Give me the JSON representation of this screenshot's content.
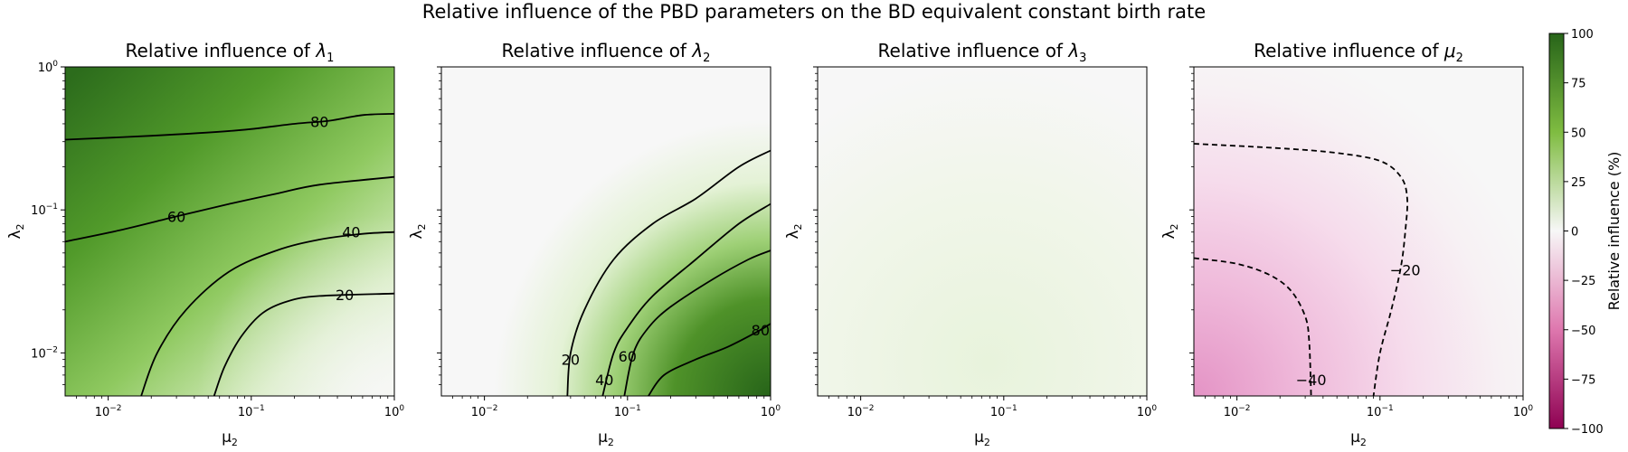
{
  "chart_data": {
    "type": "heatmap",
    "suptitle": "Relative influence of the PBD parameters on the BD equivalent constant birth rate",
    "x_scale": "log",
    "y_scale": "log",
    "xlim": [
      0.005,
      1
    ],
    "ylim": [
      0.005,
      1
    ],
    "x_ticks": [
      {
        "value": 0.01,
        "base": "10",
        "exp": "−2"
      },
      {
        "value": 0.1,
        "base": "10",
        "exp": "−1"
      },
      {
        "value": 1,
        "base": "10",
        "exp": "0"
      }
    ],
    "y_ticks": [
      {
        "value": 0.01,
        "base": "10",
        "exp": "−2"
      },
      {
        "value": 0.1,
        "base": "10",
        "exp": "−1"
      },
      {
        "value": 1,
        "base": "10",
        "exp": "0"
      }
    ],
    "colorbar": {
      "label": "Relative influence (%)",
      "range": [
        -100,
        100
      ],
      "ticks": [
        "100",
        "75",
        "50",
        "25",
        "0",
        "−25",
        "−50",
        "−75",
        "−100"
      ],
      "tick_values": [
        100,
        75,
        50,
        25,
        0,
        -25,
        -50,
        -75,
        -100
      ],
      "colormap": "PiYG",
      "colors": {
        "neg_end": "#8e0152",
        "neg_mid": "#de77ae",
        "neutral": "#f7f7f7",
        "pos_mid": "#7fbc41",
        "pos_end": "#276419"
      }
    },
    "panels": [
      {
        "title_prefix": "Relative influence of ",
        "title_sym": "λ",
        "title_sub": "1",
        "xlabel": {
          "sym": "μ",
          "sub": "2"
        },
        "ylabel": {
          "sym": "λ",
          "sub": "2"
        },
        "contours": [
          {
            "level": 80,
            "label": "80",
            "style": "solid",
            "points": [
              [
                0.005,
                0.31
              ],
              [
                0.02,
                0.33
              ],
              [
                0.08,
                0.36
              ],
              [
                0.2,
                0.4
              ],
              [
                0.35,
                0.42
              ],
              [
                0.6,
                0.46
              ],
              [
                1,
                0.47
              ]
            ],
            "label_at": [
              0.3,
              0.415
            ]
          },
          {
            "level": 60,
            "label": "60",
            "style": "solid",
            "points": [
              [
                0.005,
                0.06
              ],
              [
                0.012,
                0.072
              ],
              [
                0.03,
                0.09
              ],
              [
                0.07,
                0.11
              ],
              [
                0.15,
                0.13
              ],
              [
                0.3,
                0.15
              ],
              [
                1,
                0.17
              ]
            ],
            "label_at": [
              0.03,
              0.09
            ]
          },
          {
            "level": 40,
            "label": "40",
            "style": "solid",
            "points": [
              [
                0.017,
                0.005
              ],
              [
                0.022,
                0.01
              ],
              [
                0.035,
                0.02
              ],
              [
                0.07,
                0.037
              ],
              [
                0.15,
                0.052
              ],
              [
                0.3,
                0.062
              ],
              [
                0.6,
                0.068
              ],
              [
                1,
                0.07
              ]
            ],
            "label_at": [
              0.5,
              0.07
            ]
          },
          {
            "level": 20,
            "label": "20",
            "style": "solid",
            "points": [
              [
                0.055,
                0.005
              ],
              [
                0.065,
                0.008
              ],
              [
                0.085,
                0.013
              ],
              [
                0.12,
                0.019
              ],
              [
                0.18,
                0.023
              ],
              [
                0.3,
                0.025
              ],
              [
                1,
                0.026
              ]
            ],
            "label_at": [
              0.45,
              0.0255
            ]
          }
        ]
      },
      {
        "title_prefix": "Relative influence of ",
        "title_sym": "λ",
        "title_sub": "2",
        "xlabel": {
          "sym": "μ",
          "sub": "2"
        },
        "ylabel": {
          "sym": "λ",
          "sub": "2"
        },
        "contours": [
          {
            "level": 20,
            "label": "20",
            "style": "solid",
            "points": [
              [
                0.038,
                0.005
              ],
              [
                0.04,
                0.01
              ],
              [
                0.05,
                0.02
              ],
              [
                0.08,
                0.045
              ],
              [
                0.15,
                0.08
              ],
              [
                0.3,
                0.12
              ],
              [
                0.6,
                0.2
              ],
              [
                1,
                0.26
              ]
            ],
            "label_at": [
              0.04,
              0.009
            ]
          },
          {
            "level": 40,
            "label": "40",
            "style": "solid",
            "points": [
              [
                0.067,
                0.005
              ],
              [
                0.08,
                0.01
              ],
              [
                0.1,
                0.015
              ],
              [
                0.15,
                0.025
              ],
              [
                0.3,
                0.045
              ],
              [
                0.6,
                0.08
              ],
              [
                1,
                0.11
              ]
            ],
            "label_at": [
              0.069,
              0.0065
            ]
          },
          {
            "level": 60,
            "label": "60",
            "style": "solid",
            "points": [
              [
                0.095,
                0.005
              ],
              [
                0.11,
                0.01
              ],
              [
                0.14,
                0.015
              ],
              [
                0.2,
                0.021
              ],
              [
                0.4,
                0.033
              ],
              [
                0.7,
                0.045
              ],
              [
                1,
                0.052
              ]
            ],
            "label_at": [
              0.1,
              0.0095
            ]
          },
          {
            "level": 80,
            "label": "80",
            "style": "solid",
            "points": [
              [
                0.14,
                0.005
              ],
              [
                0.18,
                0.007
              ],
              [
                0.3,
                0.009
              ],
              [
                0.5,
                0.011
              ],
              [
                0.8,
                0.014
              ],
              [
                1,
                0.016
              ]
            ],
            "label_at": [
              0.85,
              0.0145
            ]
          }
        ]
      },
      {
        "title_prefix": "Relative influence of ",
        "title_sym": "λ",
        "title_sub": "3",
        "xlabel": {
          "sym": "μ",
          "sub": "2"
        },
        "ylabel": {
          "sym": "λ",
          "sub": "2"
        },
        "contours": []
      },
      {
        "title_prefix": "Relative influence of ",
        "title_sym": "μ",
        "title_sub": "2",
        "xlabel": {
          "sym": "μ",
          "sub": "2"
        },
        "ylabel": {
          "sym": "λ",
          "sub": "2"
        },
        "contours": [
          {
            "level": -20,
            "label": "−20",
            "style": "dashed",
            "points": [
              [
                0.005,
                0.29
              ],
              [
                0.02,
                0.27
              ],
              [
                0.05,
                0.25
              ],
              [
                0.1,
                0.22
              ],
              [
                0.14,
                0.17
              ],
              [
                0.155,
                0.12
              ],
              [
                0.15,
                0.07
              ],
              [
                0.14,
                0.04
              ],
              [
                0.12,
                0.02
              ],
              [
                0.1,
                0.01
              ],
              [
                0.09,
                0.005
              ]
            ],
            "label_at": [
              0.15,
              0.038
            ]
          },
          {
            "level": -40,
            "label": "−40",
            "style": "dashed",
            "points": [
              [
                0.005,
                0.046
              ],
              [
                0.01,
                0.042
              ],
              [
                0.017,
                0.035
              ],
              [
                0.024,
                0.027
              ],
              [
                0.03,
                0.018
              ],
              [
                0.032,
                0.012
              ],
              [
                0.033,
                0.005
              ]
            ],
            "label_at": [
              0.033,
              0.0065
            ]
          }
        ]
      }
    ]
  }
}
